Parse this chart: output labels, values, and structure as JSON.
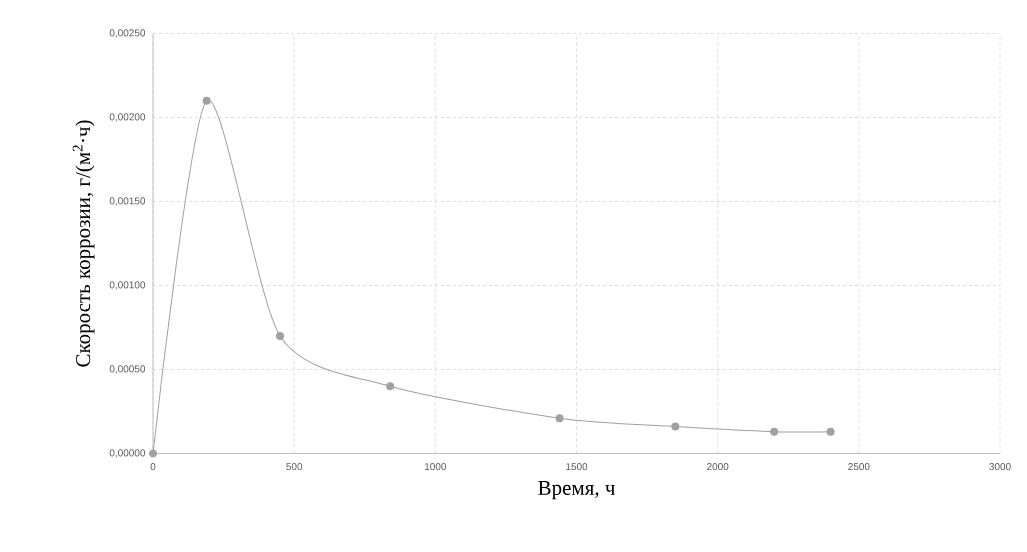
{
  "chart_data": {
    "type": "line",
    "xlabel": "Время, ч",
    "ylabel": "Скорость коррозии, г/(м$^{2}$·ч)",
    "x": [
      0,
      190,
      450,
      840,
      1440,
      1850,
      2200,
      2400
    ],
    "series": [
      {
        "color": "#a0a0a0",
        "values": [
          0,
          0.0021,
          0.0007,
          0.0004,
          0.00021,
          0.00016,
          0.00013,
          0.00013
        ]
      }
    ],
    "xlim": [
      0,
      3000
    ],
    "xticks": [
      0,
      500,
      1000,
      1500,
      2000,
      2500,
      3000
    ],
    "ylim": [
      0,
      0.0025
    ],
    "yticks": [
      {
        "value": 0,
        "label": "0,00000"
      },
      {
        "value": 0.0005,
        "label": "0,00050"
      },
      {
        "value": 0.001,
        "label": "0,00100"
      },
      {
        "value": 0.0015,
        "label": "0,00150"
      },
      {
        "value": 0.002,
        "label": "0,00200"
      },
      {
        "value": 0.0025,
        "label": "0,00250"
      }
    ],
    "grid": true,
    "marker": "circle",
    "line_style": "solid"
  }
}
